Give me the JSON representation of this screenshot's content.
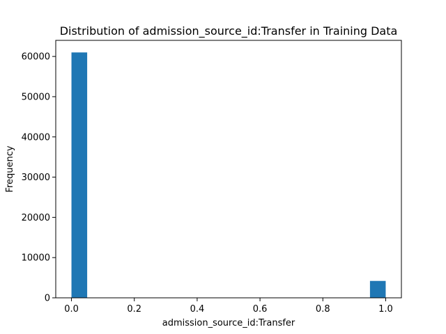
{
  "chart_data": {
    "type": "bar",
    "title": "Distribution of admission_source_id:Transfer in Training Data",
    "xlabel": "admission_source_id:Transfer",
    "ylabel": "Frequency",
    "xlim": [
      -0.05,
      1.05
    ],
    "ylim": [
      0,
      64000
    ],
    "xticks": [
      0.0,
      0.2,
      0.4,
      0.6,
      0.8,
      1.0
    ],
    "xtick_labels": [
      "0.0",
      "0.2",
      "0.4",
      "0.6",
      "0.8",
      "1.0"
    ],
    "yticks": [
      0,
      10000,
      20000,
      30000,
      40000,
      50000,
      60000
    ],
    "ytick_labels": [
      "0",
      "10000",
      "20000",
      "30000",
      "40000",
      "50000",
      "60000"
    ],
    "bins": [
      {
        "x0": 0.0,
        "x1": 0.05,
        "value": 61000
      },
      {
        "x0": 0.95,
        "x1": 1.0,
        "value": 4200
      }
    ],
    "bar_color": "#1f77b4",
    "grid": false,
    "legend": "none"
  }
}
